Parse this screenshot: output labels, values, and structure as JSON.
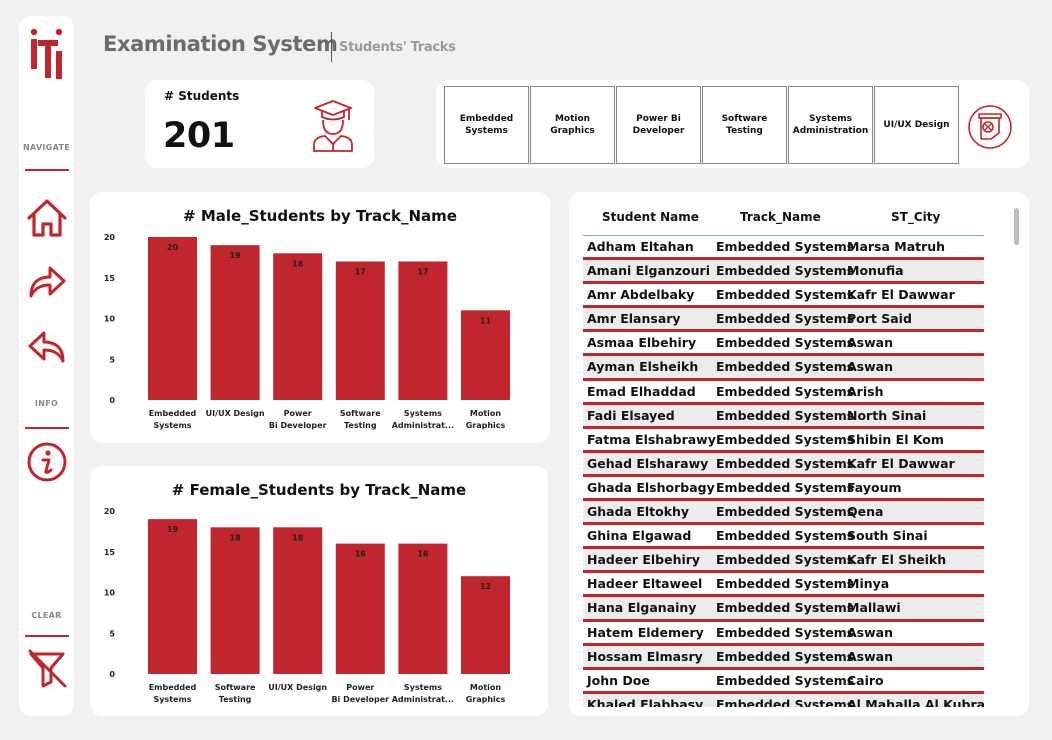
{
  "header": {
    "title": "Examination System",
    "subtitle": "Students' Tracks"
  },
  "sidebar": {
    "navigate_label": "NAVIGATE",
    "info_label": "INFO",
    "clear_label": "CLEAR"
  },
  "kpi": {
    "label": "# Students",
    "value": "201",
    "icon": "graduate-student-icon"
  },
  "tracks": [
    "Embedded Systems",
    "Motion Graphics",
    "Power Bi Developer",
    "Software Testing",
    "Systems Administration",
    "UI/UX Design"
  ],
  "colors": {
    "accent": "#c0262d"
  },
  "male_chart": {
    "chart_data": {
      "type": "bar",
      "title": "# Male_Students by Track_Name",
      "categories": [
        "Embedded Systems",
        "UI/UX Design",
        "Power Bi Developer",
        "Software Testing",
        "Systems Administrat...",
        "Motion Graphics"
      ],
      "values": [
        20,
        19,
        18,
        17,
        17,
        11
      ],
      "yticks": [
        "0",
        "5",
        "10",
        "15",
        "20"
      ],
      "ylim": [
        0,
        20
      ]
    }
  },
  "female_chart": {
    "chart_data": {
      "type": "bar",
      "title": "# Female_Students by Track_Name",
      "categories": [
        "Embedded Systems",
        "Software Testing",
        "UI/UX Design",
        "Power Bi Developer",
        "Systems Administrat...",
        "Motion Graphics"
      ],
      "values": [
        19,
        18,
        18,
        16,
        16,
        12
      ],
      "yticks": [
        "0",
        "5",
        "10",
        "15",
        "20"
      ],
      "ylim": [
        0,
        20
      ]
    }
  },
  "table": {
    "columns": [
      "Student Name",
      "Track_Name",
      "ST_City"
    ],
    "rows": [
      [
        "Adham Eltahan",
        "Embedded Systems",
        "Marsa Matruh"
      ],
      [
        "Amani Elganzouri",
        "Embedded Systems",
        "Monufia"
      ],
      [
        "Amr Abdelbaky",
        "Embedded Systems",
        "Kafr El Dawwar"
      ],
      [
        "Amr Elansary",
        "Embedded Systems",
        "Port Said"
      ],
      [
        "Asmaa Elbehiry",
        "Embedded Systems",
        "Aswan"
      ],
      [
        "Ayman Elsheikh",
        "Embedded Systems",
        "Aswan"
      ],
      [
        "Emad Elhaddad",
        "Embedded Systems",
        "Arish"
      ],
      [
        "Fadi Elsayed",
        "Embedded Systems",
        "North Sinai"
      ],
      [
        "Fatma Elshabrawy",
        "Embedded Systems",
        "Shibin El Kom"
      ],
      [
        "Gehad Elsharawy",
        "Embedded Systems",
        "Kafr El Dawwar"
      ],
      [
        "Ghada Elshorbagy",
        "Embedded Systems",
        "Fayoum"
      ],
      [
        "Ghada Eltokhy",
        "Embedded Systems",
        "Qena"
      ],
      [
        "Ghina Elgawad",
        "Embedded Systems",
        "South Sinai"
      ],
      [
        "Hadeer Elbehiry",
        "Embedded Systems",
        "Kafr El Sheikh"
      ],
      [
        "Hadeer Eltaweel",
        "Embedded Systems",
        "Minya"
      ],
      [
        "Hana Elganainy",
        "Embedded Systems",
        "Mallawi"
      ],
      [
        "Hatem Eldemery",
        "Embedded Systems",
        "Aswan"
      ],
      [
        "Hossam Elmasry",
        "Embedded Systems",
        "Aswan"
      ],
      [
        "John Doe",
        "Embedded Systems",
        "Cairo"
      ],
      [
        "Khaled Elabbasy",
        "Embedded Systems",
        "Al Mahalla Al Kubra"
      ]
    ]
  }
}
